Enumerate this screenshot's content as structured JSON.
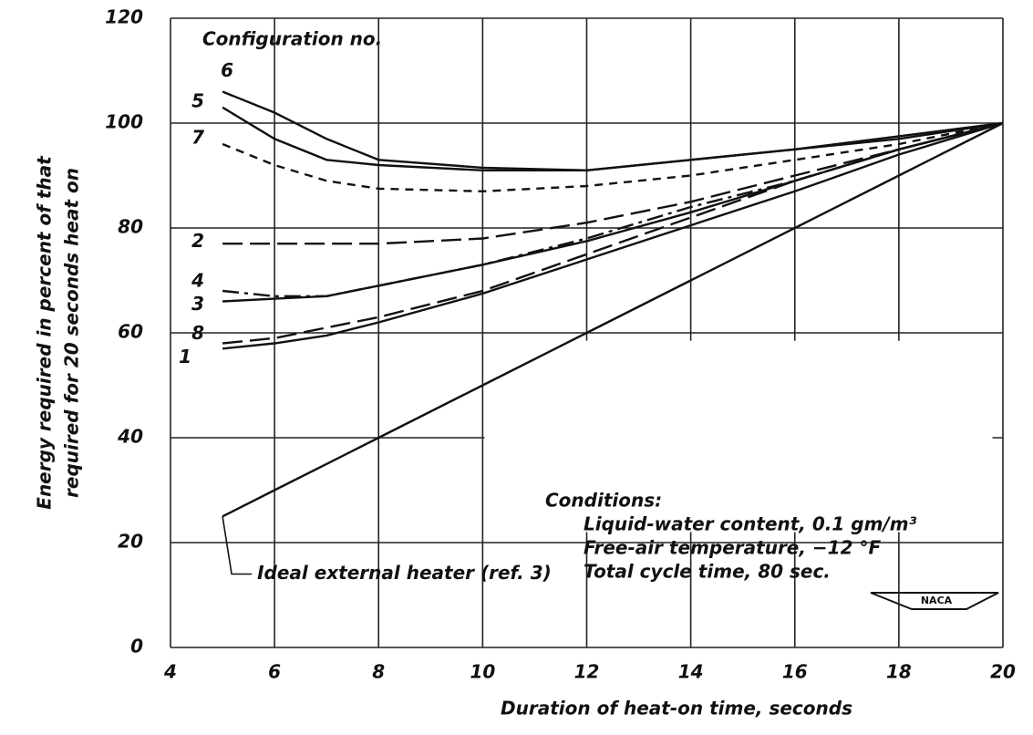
{
  "chart_data": {
    "type": "line",
    "ylabel": [
      "Energy required in percent of that",
      "required for 20 seconds heat on"
    ],
    "xlabel": "Duration of heat-on time, seconds",
    "legend_title": "Configuration no.",
    "annotation": [
      "Conditions:",
      "Liquid-water content, 0.1 gm/m³",
      "Free-air temperature, −12 °F",
      "Total cycle time, 80 sec."
    ],
    "x": [
      5,
      6,
      7,
      8,
      10,
      12,
      14,
      16,
      18,
      20
    ],
    "series": [
      {
        "name": "6",
        "color": "#111111",
        "dash": "solid-dashed",
        "values": [
          106,
          102,
          97,
          93,
          91.5,
          91,
          93,
          95,
          97.5,
          100
        ]
      },
      {
        "name": "5",
        "color": "#111111",
        "dash": "solid",
        "values": [
          103,
          97,
          93,
          92,
          91,
          91,
          93,
          95,
          97,
          100
        ]
      },
      {
        "name": "7",
        "color": "#111111",
        "dash": "dashed",
        "values": [
          96,
          92,
          89,
          87.5,
          87,
          88,
          90,
          93,
          96,
          100
        ]
      },
      {
        "name": "2",
        "color": "#111111",
        "dash": "long-dashed",
        "values": [
          77,
          77,
          77,
          77,
          78,
          81,
          85,
          90,
          95,
          100
        ]
      },
      {
        "name": "4",
        "color": "#111111",
        "dash": "dash-dot",
        "values": [
          68,
          67,
          67,
          69,
          73,
          78,
          84,
          89,
          95,
          100
        ]
      },
      {
        "name": "3",
        "color": "#111111",
        "dash": "solid",
        "values": [
          66,
          66.5,
          67,
          69,
          73,
          77.5,
          83,
          89,
          95,
          100
        ]
      },
      {
        "name": "8",
        "color": "#111111",
        "dash": "long-dashed",
        "values": [
          58,
          59,
          61,
          63,
          68,
          75,
          82,
          89,
          95,
          100
        ]
      },
      {
        "name": "1",
        "color": "#111111",
        "dash": "solid",
        "values": [
          57,
          58,
          59.5,
          62,
          67.5,
          74,
          80.5,
          87,
          94,
          100
        ]
      },
      {
        "name": "Ideal external heater (ref. 3)",
        "color": "#111111",
        "dash": "solid",
        "values": [
          25,
          30,
          35,
          40,
          50,
          60,
          70,
          80,
          90,
          100
        ]
      }
    ],
    "xlim": [
      4,
      20
    ],
    "xticks": [
      4,
      6,
      8,
      10,
      12,
      14,
      16,
      18,
      20
    ],
    "ylim": [
      0,
      120
    ],
    "yticks": [
      0,
      20,
      40,
      60,
      80,
      100,
      120
    ],
    "grid": true
  }
}
